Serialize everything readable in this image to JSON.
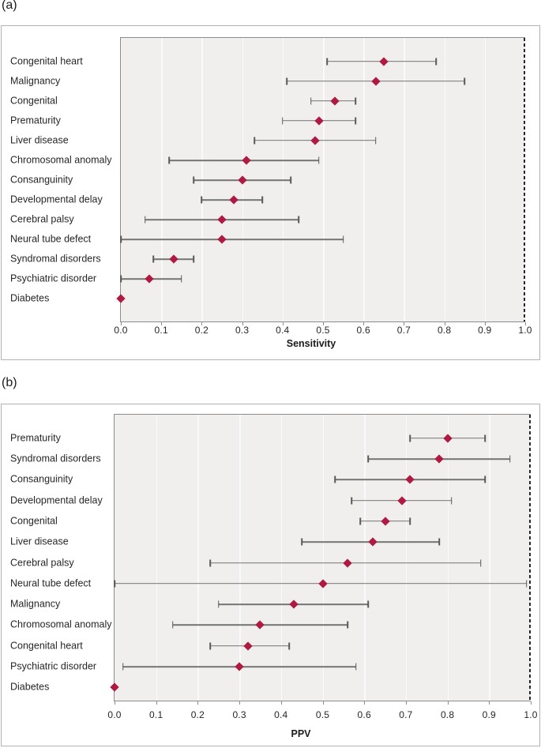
{
  "colors": {
    "marker": "#ae1a42",
    "ci_line": "#747474",
    "ci_cap": "#595959",
    "plot_background": "#f0efee",
    "gridline": "#fafafa",
    "plot_border": "#8c8c8c",
    "panel_border": "#b3b3b3",
    "reference_line": "#262626",
    "text": "#262626"
  },
  "chart_data": [
    {
      "type": "scatter",
      "panel_tag": "(a)",
      "xlabel": "Sensitivity",
      "xlim": [
        0.0,
        1.0
      ],
      "xticks": [
        "0.0",
        "0.1",
        "0.2",
        "0.3",
        "0.4",
        "0.5",
        "0.6",
        "0.7",
        "0.8",
        "0.9",
        "1.0"
      ],
      "marker_shape": "diamond",
      "error_bars": "horizontal 95% CI",
      "reference_line_x": 1.0,
      "grid": "vertical gridlines at 0.1 intervals",
      "points": [
        {
          "label": "Congenital heart",
          "value": 0.65,
          "ci_low": 0.51,
          "ci_high": 0.78
        },
        {
          "label": "Malignancy",
          "value": 0.63,
          "ci_low": 0.41,
          "ci_high": 0.85
        },
        {
          "label": "Congenital",
          "value": 0.53,
          "ci_low": 0.47,
          "ci_high": 0.58
        },
        {
          "label": "Prematurity",
          "value": 0.49,
          "ci_low": 0.4,
          "ci_high": 0.58
        },
        {
          "label": "Liver disease",
          "value": 0.48,
          "ci_low": 0.33,
          "ci_high": 0.63
        },
        {
          "label": "Chromosomal anomaly",
          "value": 0.31,
          "ci_low": 0.12,
          "ci_high": 0.49
        },
        {
          "label": "Consanguinity",
          "value": 0.3,
          "ci_low": 0.18,
          "ci_high": 0.42
        },
        {
          "label": "Developmental delay",
          "value": 0.28,
          "ci_low": 0.2,
          "ci_high": 0.35
        },
        {
          "label": "Cerebral palsy",
          "value": 0.25,
          "ci_low": 0.06,
          "ci_high": 0.44
        },
        {
          "label": "Neural tube defect",
          "value": 0.25,
          "ci_low": 0.0,
          "ci_high": 0.55
        },
        {
          "label": "Syndromal disorders",
          "value": 0.13,
          "ci_low": 0.08,
          "ci_high": 0.18
        },
        {
          "label": "Psychiatric disorder",
          "value": 0.07,
          "ci_low": 0.0,
          "ci_high": 0.15
        },
        {
          "label": "Diabetes",
          "value": 0.0,
          "ci_low": 0.0,
          "ci_high": 0.0
        }
      ]
    },
    {
      "type": "scatter",
      "panel_tag": "(b)",
      "xlabel": "PPV",
      "xlim": [
        0.0,
        1.0
      ],
      "xticks": [
        "0.0",
        "0.1",
        "0.2",
        "0.3",
        "0.4",
        "0.5",
        "0.6",
        "0.7",
        "0.8",
        "0.9",
        "1.0"
      ],
      "marker_shape": "diamond",
      "error_bars": "horizontal 95% CI",
      "reference_line_x": 1.0,
      "grid": "vertical gridlines at 0.1 intervals",
      "points": [
        {
          "label": "Prematurity",
          "value": 0.8,
          "ci_low": 0.71,
          "ci_high": 0.89
        },
        {
          "label": "Syndromal disorders",
          "value": 0.78,
          "ci_low": 0.61,
          "ci_high": 0.95
        },
        {
          "label": "Consanguinity",
          "value": 0.71,
          "ci_low": 0.53,
          "ci_high": 0.89
        },
        {
          "label": "Developmental delay",
          "value": 0.69,
          "ci_low": 0.57,
          "ci_high": 0.81
        },
        {
          "label": "Congenital",
          "value": 0.65,
          "ci_low": 0.59,
          "ci_high": 0.71
        },
        {
          "label": "Liver disease",
          "value": 0.62,
          "ci_low": 0.45,
          "ci_high": 0.78
        },
        {
          "label": "Cerebral palsy",
          "value": 0.56,
          "ci_low": 0.23,
          "ci_high": 0.88
        },
        {
          "label": "Neural tube defect",
          "value": 0.5,
          "ci_low": 0.0,
          "ci_high": 0.99
        },
        {
          "label": "Malignancy",
          "value": 0.43,
          "ci_low": 0.25,
          "ci_high": 0.61
        },
        {
          "label": "Chromosomal anomaly",
          "value": 0.35,
          "ci_low": 0.14,
          "ci_high": 0.56
        },
        {
          "label": "Congenital heart",
          "value": 0.32,
          "ci_low": 0.23,
          "ci_high": 0.42
        },
        {
          "label": "Psychiatric disorder",
          "value": 0.3,
          "ci_low": 0.02,
          "ci_high": 0.58
        },
        {
          "label": "Diabetes",
          "value": 0.0,
          "ci_low": 0.0,
          "ci_high": 0.0
        }
      ]
    }
  ]
}
